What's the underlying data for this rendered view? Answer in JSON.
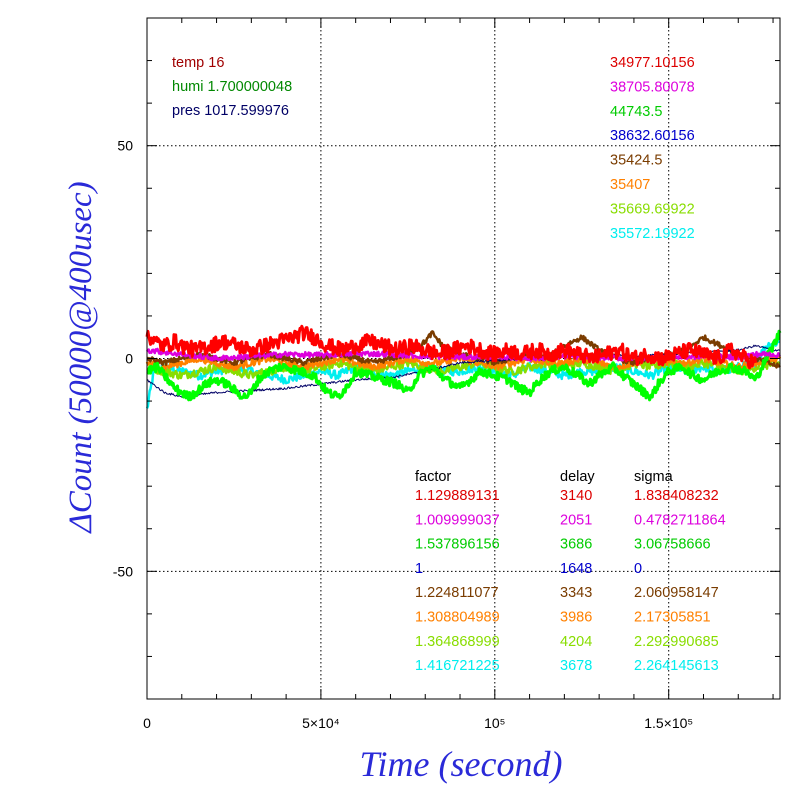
{
  "chart_data": {
    "type": "line",
    "xlabel": "Time (second)",
    "ylabel": "ΔCount (50000@400usec)",
    "xlim": [
      0,
      182000
    ],
    "ylim": [
      -80,
      80
    ],
    "grid": true,
    "x_ticks": [
      {
        "value": 0,
        "label": "0"
      },
      {
        "value": 50000,
        "label": "5×10⁴"
      },
      {
        "value": 100000,
        "label": "10⁵"
      },
      {
        "value": 150000,
        "label": "1.5×10⁵"
      }
    ],
    "y_ticks": [
      {
        "value": 50,
        "label": "50"
      },
      {
        "value": 0,
        "label": "0"
      },
      {
        "value": -50,
        "label": "-50"
      }
    ],
    "env": [
      {
        "text": "temp 16",
        "color": "#a00000"
      },
      {
        "text": "humi 1.700000048",
        "color": "#008800"
      },
      {
        "text": "pres 1017.599976",
        "color": "#000066"
      }
    ],
    "offsets": [
      {
        "text": "34977.10156",
        "color": "#dd0000"
      },
      {
        "text": "38705.80078",
        "color": "#dd00dd"
      },
      {
        "text": "44743.5",
        "color": "#00cc00"
      },
      {
        "text": "38632.60156",
        "color": "#0000cc"
      },
      {
        "text": "35424.5",
        "color": "#7a3c00"
      },
      {
        "text": "35407",
        "color": "#ff8000"
      },
      {
        "text": "35669.69922",
        "color": "#88dd00"
      },
      {
        "text": "35572.19922",
        "color": "#00eeee"
      }
    ],
    "params_headers": [
      "factor",
      "delay",
      "sigma"
    ],
    "params": [
      {
        "factor": "1.129889131",
        "delay": "3140",
        "sigma": "1.838408232",
        "color": "#dd0000"
      },
      {
        "factor": "1.009999037",
        "delay": "2051",
        "sigma": "0.4782711864",
        "color": "#dd00dd"
      },
      {
        "factor": "1.537896156",
        "delay": "3686",
        "sigma": "3.06758666",
        "color": "#00cc00"
      },
      {
        "factor": "1",
        "delay": "1648",
        "sigma": "0",
        "color": "#0000cc"
      },
      {
        "factor": "1.224811077",
        "delay": "3343",
        "sigma": "2.060958147",
        "color": "#7a3c00"
      },
      {
        "factor": "1.308804989",
        "delay": "3986",
        "sigma": "2.17305851",
        "color": "#ff8000"
      },
      {
        "factor": "1.364868999",
        "delay": "4204",
        "sigma": "2.292990685",
        "color": "#88dd00"
      },
      {
        "factor": "1.416721225",
        "delay": "3678",
        "sigma": "2.264145613",
        "color": "#00eeee"
      }
    ],
    "series": [
      {
        "color": "#00eeee",
        "noise": 1.0,
        "width": 2.5,
        "x": [
          0,
          2000,
          5000,
          10000,
          15000,
          20000,
          25000,
          30000,
          35000,
          40000,
          45000,
          50000,
          55000,
          60000,
          65000,
          70000,
          75000,
          80000,
          85000,
          90000,
          95000,
          100000,
          105000,
          110000,
          115000,
          120000,
          125000,
          130000,
          135000,
          140000,
          145000,
          150000,
          155000,
          160000,
          165000,
          170000,
          175000,
          178000,
          182000
        ],
        "y": [
          -12,
          -3,
          -2,
          -3,
          -4,
          -3,
          -2,
          -3,
          -4,
          -5,
          -4,
          -3,
          -4,
          -2,
          -3,
          -4,
          -3,
          -2,
          -3,
          -3,
          -2,
          -3,
          -4,
          -2,
          -3,
          -4,
          -3,
          -3,
          -2,
          -3,
          -4,
          -2,
          -3,
          -2,
          -3,
          -2,
          -1,
          3,
          4
        ]
      },
      {
        "color": "#88dd00",
        "noise": 1.0,
        "width": 2.5,
        "x": [
          0,
          5000,
          10000,
          15000,
          20000,
          25000,
          30000,
          35000,
          40000,
          45000,
          50000,
          55000,
          60000,
          65000,
          70000,
          75000,
          80000,
          85000,
          90000,
          95000,
          100000,
          105000,
          110000,
          115000,
          120000,
          125000,
          130000,
          135000,
          140000,
          145000,
          150000,
          155000,
          160000,
          165000,
          170000,
          175000,
          182000
        ],
        "y": [
          -2,
          -3,
          -4,
          -3,
          -2,
          -3,
          -4,
          -3,
          -2,
          -3,
          -2,
          -1,
          -2,
          -3,
          -2,
          -1,
          -2,
          -3,
          -2,
          -1,
          -2,
          -3,
          -2,
          -1,
          -2,
          -1,
          -2,
          -3,
          -1,
          -2,
          -1,
          -2,
          -1,
          -2,
          -3,
          -2,
          -1
        ]
      },
      {
        "color": "#ff8000",
        "noise": 0.8,
        "width": 2.5,
        "x": [
          0,
          5000,
          10000,
          15000,
          20000,
          25000,
          30000,
          35000,
          40000,
          45000,
          50000,
          55000,
          60000,
          65000,
          70000,
          75000,
          80000,
          85000,
          90000,
          95000,
          100000,
          105000,
          110000,
          115000,
          120000,
          125000,
          130000,
          135000,
          140000,
          145000,
          150000,
          155000,
          160000,
          165000,
          170000,
          175000,
          182000
        ],
        "y": [
          -1,
          -2,
          -1,
          0,
          -1,
          -2,
          -1,
          0,
          -1,
          -2,
          -1,
          0,
          -1,
          -2,
          -1,
          0,
          -1,
          -1,
          0,
          -1,
          -2,
          -1,
          0,
          -1,
          -1,
          0,
          -1,
          -2,
          -1,
          0,
          -1,
          -1,
          0,
          -1,
          -2,
          -1,
          0
        ]
      },
      {
        "color": "#7a3c00",
        "noise": 0.6,
        "width": 2.5,
        "x": [
          0,
          5000,
          10000,
          15000,
          20000,
          25000,
          30000,
          35000,
          40000,
          45000,
          50000,
          55000,
          60000,
          65000,
          70000,
          75000,
          80000,
          82000,
          85000,
          90000,
          95000,
          100000,
          105000,
          110000,
          115000,
          120000,
          125000,
          130000,
          135000,
          140000,
          145000,
          150000,
          155000,
          160000,
          165000,
          170000,
          175000,
          182000
        ],
        "y": [
          0,
          -1,
          0,
          1,
          0,
          -1,
          0,
          1,
          0,
          -1,
          0,
          1,
          0,
          -1,
          0,
          1,
          4,
          6,
          3,
          1,
          0,
          -1,
          0,
          1,
          0,
          3,
          5,
          2,
          0,
          -1,
          0,
          1,
          2,
          5,
          3,
          1,
          0,
          -2
        ]
      },
      {
        "color": "#000066",
        "noise": 0.25,
        "width": 1,
        "x": [
          0,
          5000,
          10000,
          15000,
          20000,
          30000,
          40000,
          50000,
          60000,
          70000,
          80000,
          90000,
          100000,
          110000,
          120000,
          130000,
          140000,
          150000,
          160000,
          170000,
          175000,
          180000,
          182000
        ],
        "y": [
          -5,
          -8,
          -9,
          -8.5,
          -8,
          -7.5,
          -7,
          -6,
          -5,
          -4.5,
          -3,
          -1,
          -0.5,
          0,
          0.5,
          1,
          0.5,
          1,
          1.5,
          2,
          3,
          2,
          2
        ]
      },
      {
        "color": "#00ff00",
        "noise": 1.0,
        "width": 3.2,
        "x": [
          0,
          3000,
          6000,
          8000,
          10000,
          12000,
          14000,
          17000,
          20000,
          23000,
          26000,
          28000,
          30000,
          32000,
          35000,
          38000,
          40000,
          44000,
          48000,
          50000,
          52000,
          55000,
          58000,
          60000,
          64000,
          68000,
          72000,
          75000,
          78000,
          82000,
          86000,
          90000,
          93000,
          96000,
          100000,
          104000,
          107000,
          110000,
          113000,
          116000,
          120000,
          124000,
          127000,
          130000,
          134000,
          137000,
          140000,
          143000,
          145000,
          147000,
          150000,
          154000,
          157000,
          160000,
          164000,
          168000,
          172000,
          175000,
          178000,
          182000
        ],
        "y": [
          -3,
          -2,
          -5,
          -7,
          -8,
          -9,
          -8,
          -6,
          -5,
          -6,
          -8,
          -9,
          -8,
          -5,
          -3,
          -2,
          -2,
          -3,
          -4,
          -6,
          -8,
          -9,
          -6,
          -3,
          -4,
          -5,
          -6,
          -8,
          -4,
          -2,
          -5,
          -7,
          -5,
          -3,
          -4,
          -5,
          -7,
          -8,
          -5,
          -3,
          -2,
          -4,
          -6,
          -4,
          -2,
          -4,
          -6,
          -8,
          -9,
          -6,
          -3,
          -2,
          -4,
          -5,
          -3,
          -2,
          -3,
          -5,
          0,
          6
        ]
      },
      {
        "color": "#dd00dd",
        "noise": 0.6,
        "width": 2.5,
        "x": [
          0,
          10000,
          20000,
          30000,
          40000,
          50000,
          60000,
          70000,
          80000,
          90000,
          100000,
          110000,
          120000,
          130000,
          140000,
          150000,
          160000,
          170000,
          175000,
          180000,
          182000
        ],
        "y": [
          2,
          1,
          0,
          0.5,
          1,
          0.8,
          1.2,
          1,
          0.5,
          0.3,
          0.5,
          0,
          0.5,
          0.3,
          0,
          0.2,
          0.5,
          0.3,
          1,
          1,
          0.5
        ]
      },
      {
        "color": "#ff0000",
        "noise": 1.8,
        "width": 3.0,
        "x": [
          0,
          2000,
          5000,
          8000,
          10000,
          14000,
          18000,
          22000,
          26000,
          30000,
          34000,
          38000,
          42000,
          45000,
          48000,
          52000,
          56000,
          60000,
          64000,
          68000,
          72000,
          76000,
          80000,
          84000,
          88000,
          92000,
          96000,
          100000,
          104000,
          108000,
          112000,
          116000,
          120000,
          124000,
          128000,
          132000,
          136000,
          140000,
          144000,
          148000,
          152000,
          156000,
          160000,
          164000,
          168000,
          172000,
          175000
        ],
        "y": [
          6,
          4,
          3,
          4,
          3,
          2,
          3,
          4,
          3,
          2,
          3,
          4,
          5,
          6,
          5,
          3,
          2,
          3,
          4,
          3,
          2,
          3,
          2,
          1,
          2,
          3,
          2,
          1,
          2,
          1,
          2,
          1,
          2,
          1,
          0,
          1,
          2,
          0,
          1,
          0,
          1,
          2,
          1,
          0,
          2,
          0,
          -1
        ]
      }
    ]
  }
}
